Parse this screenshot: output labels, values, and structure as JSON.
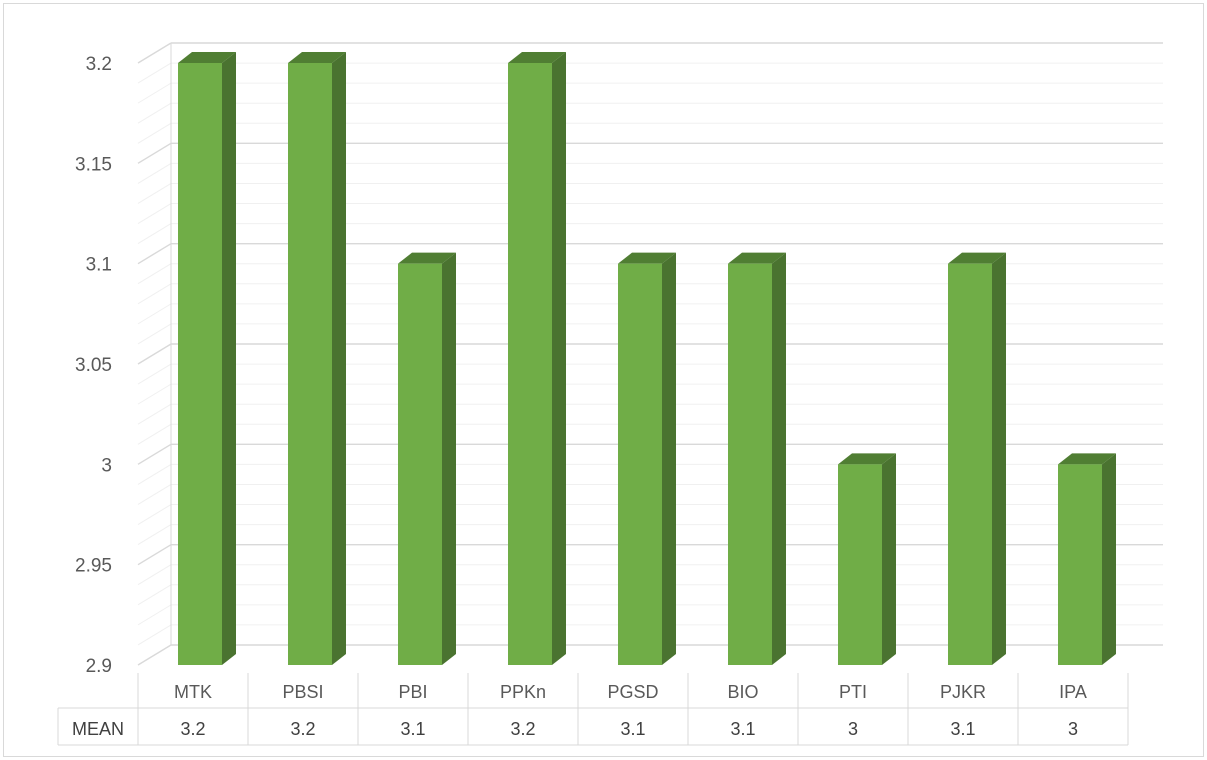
{
  "chart_data": {
    "type": "bar",
    "categories": [
      "MTK",
      "PBSI",
      "PBI",
      "PPKn",
      "PGSD",
      "BIO",
      "PTI",
      "PJKR",
      "IPA"
    ],
    "series": [
      {
        "name": "MEAN",
        "values": [
          3.2,
          3.2,
          3.1,
          3.2,
          3.1,
          3.1,
          3.0,
          3.1,
          3.0
        ]
      }
    ],
    "table_row_label": "MEAN",
    "table_values": [
      "3.2",
      "3.2",
      "3.1",
      "3.2",
      "3.1",
      "3.1",
      "3",
      "3.1",
      "3"
    ],
    "y_ticks": [
      "2.9",
      "2.95",
      "3",
      "3.05",
      "3.1",
      "3.15",
      "3.2"
    ],
    "ylim": [
      2.9,
      3.2
    ],
    "grid": true,
    "style": "3d-column",
    "colors": {
      "bar_front": "#70ad47",
      "bar_side": "#4a7330",
      "bar_top": "#507e33",
      "gridline": "#d9d9d9",
      "minor_gridline": "#f0f0f0",
      "border": "#d9d9d9"
    }
  }
}
